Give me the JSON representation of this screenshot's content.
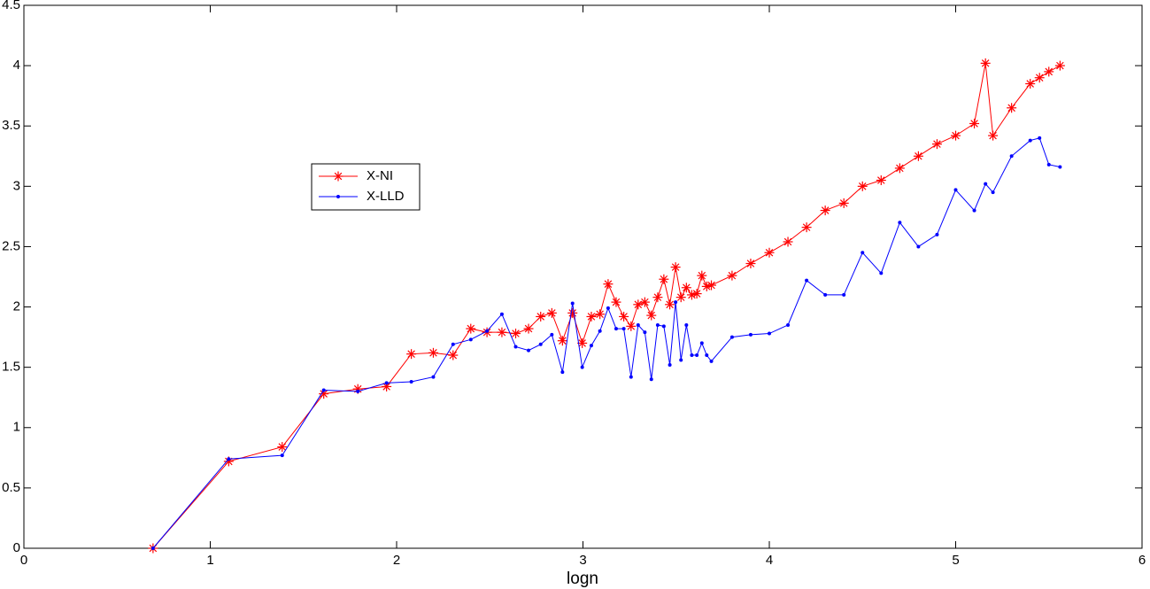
{
  "chart_data": {
    "type": "line",
    "x_label": "logn",
    "x": [
      0.693,
      1.099,
      1.386,
      1.609,
      1.792,
      1.946,
      2.079,
      2.197,
      2.303,
      2.398,
      2.485,
      2.565,
      2.639,
      2.708,
      2.773,
      2.833,
      2.89,
      2.944,
      2.996,
      3.045,
      3.091,
      3.135,
      3.178,
      3.219,
      3.258,
      3.296,
      3.332,
      3.367,
      3.401,
      3.434,
      3.466,
      3.497,
      3.526,
      3.555,
      3.584,
      3.611,
      3.638,
      3.664,
      3.689,
      3.8,
      3.9,
      4.0,
      4.1,
      4.2,
      4.3,
      4.4,
      4.5,
      4.6,
      4.7,
      4.8,
      4.9,
      5.0,
      5.1,
      5.16,
      5.2,
      5.3,
      5.4,
      5.45,
      5.5,
      5.56
    ],
    "series": [
      {
        "name": "X-NI",
        "color": "#ff0000",
        "marker": "asterisk",
        "values": [
          0,
          0.72,
          0.84,
          1.28,
          1.32,
          1.34,
          1.61,
          1.62,
          1.6,
          1.82,
          1.79,
          1.79,
          1.78,
          1.82,
          1.92,
          1.95,
          1.72,
          1.95,
          1.7,
          1.92,
          1.94,
          2.19,
          2.04,
          1.92,
          1.84,
          2.02,
          2.04,
          1.93,
          2.08,
          2.23,
          2.02,
          2.33,
          2.08,
          2.16,
          2.1,
          2.11,
          2.26,
          2.17,
          2.18,
          2.26,
          2.36,
          2.45,
          2.54,
          2.66,
          2.8,
          2.86,
          3.0,
          3.05,
          3.15,
          3.25,
          3.35,
          3.42,
          3.52,
          4.02,
          3.42,
          3.65,
          3.85,
          3.9,
          3.95,
          4.0
        ]
      },
      {
        "name": "X-LLD",
        "color": "#0000ff",
        "marker": "dot",
        "values": [
          0,
          0.74,
          0.77,
          1.31,
          1.3,
          1.37,
          1.38,
          1.42,
          1.69,
          1.73,
          1.8,
          1.94,
          1.67,
          1.64,
          1.69,
          1.77,
          1.46,
          2.03,
          1.5,
          1.68,
          1.8,
          1.99,
          1.82,
          1.82,
          1.42,
          1.85,
          1.79,
          1.4,
          1.85,
          1.84,
          1.52,
          2.04,
          1.56,
          1.85,
          1.6,
          1.6,
          1.7,
          1.6,
          1.55,
          1.75,
          1.77,
          1.78,
          1.85,
          2.22,
          2.1,
          2.1,
          2.45,
          2.28,
          2.7,
          2.5,
          2.6,
          2.97,
          2.8,
          3.02,
          2.95,
          3.25,
          3.38,
          3.4,
          3.18,
          3.16
        ]
      }
    ],
    "xlim": [
      0,
      6
    ],
    "xticks": [
      0,
      1,
      2,
      3,
      4,
      5,
      6
    ],
    "ylim": [
      0,
      4.5
    ],
    "yticks": [
      0,
      0.5,
      1,
      1.5,
      2,
      2.5,
      3,
      3.5,
      4,
      4.5
    ],
    "grid": false,
    "legend": "upper left"
  }
}
